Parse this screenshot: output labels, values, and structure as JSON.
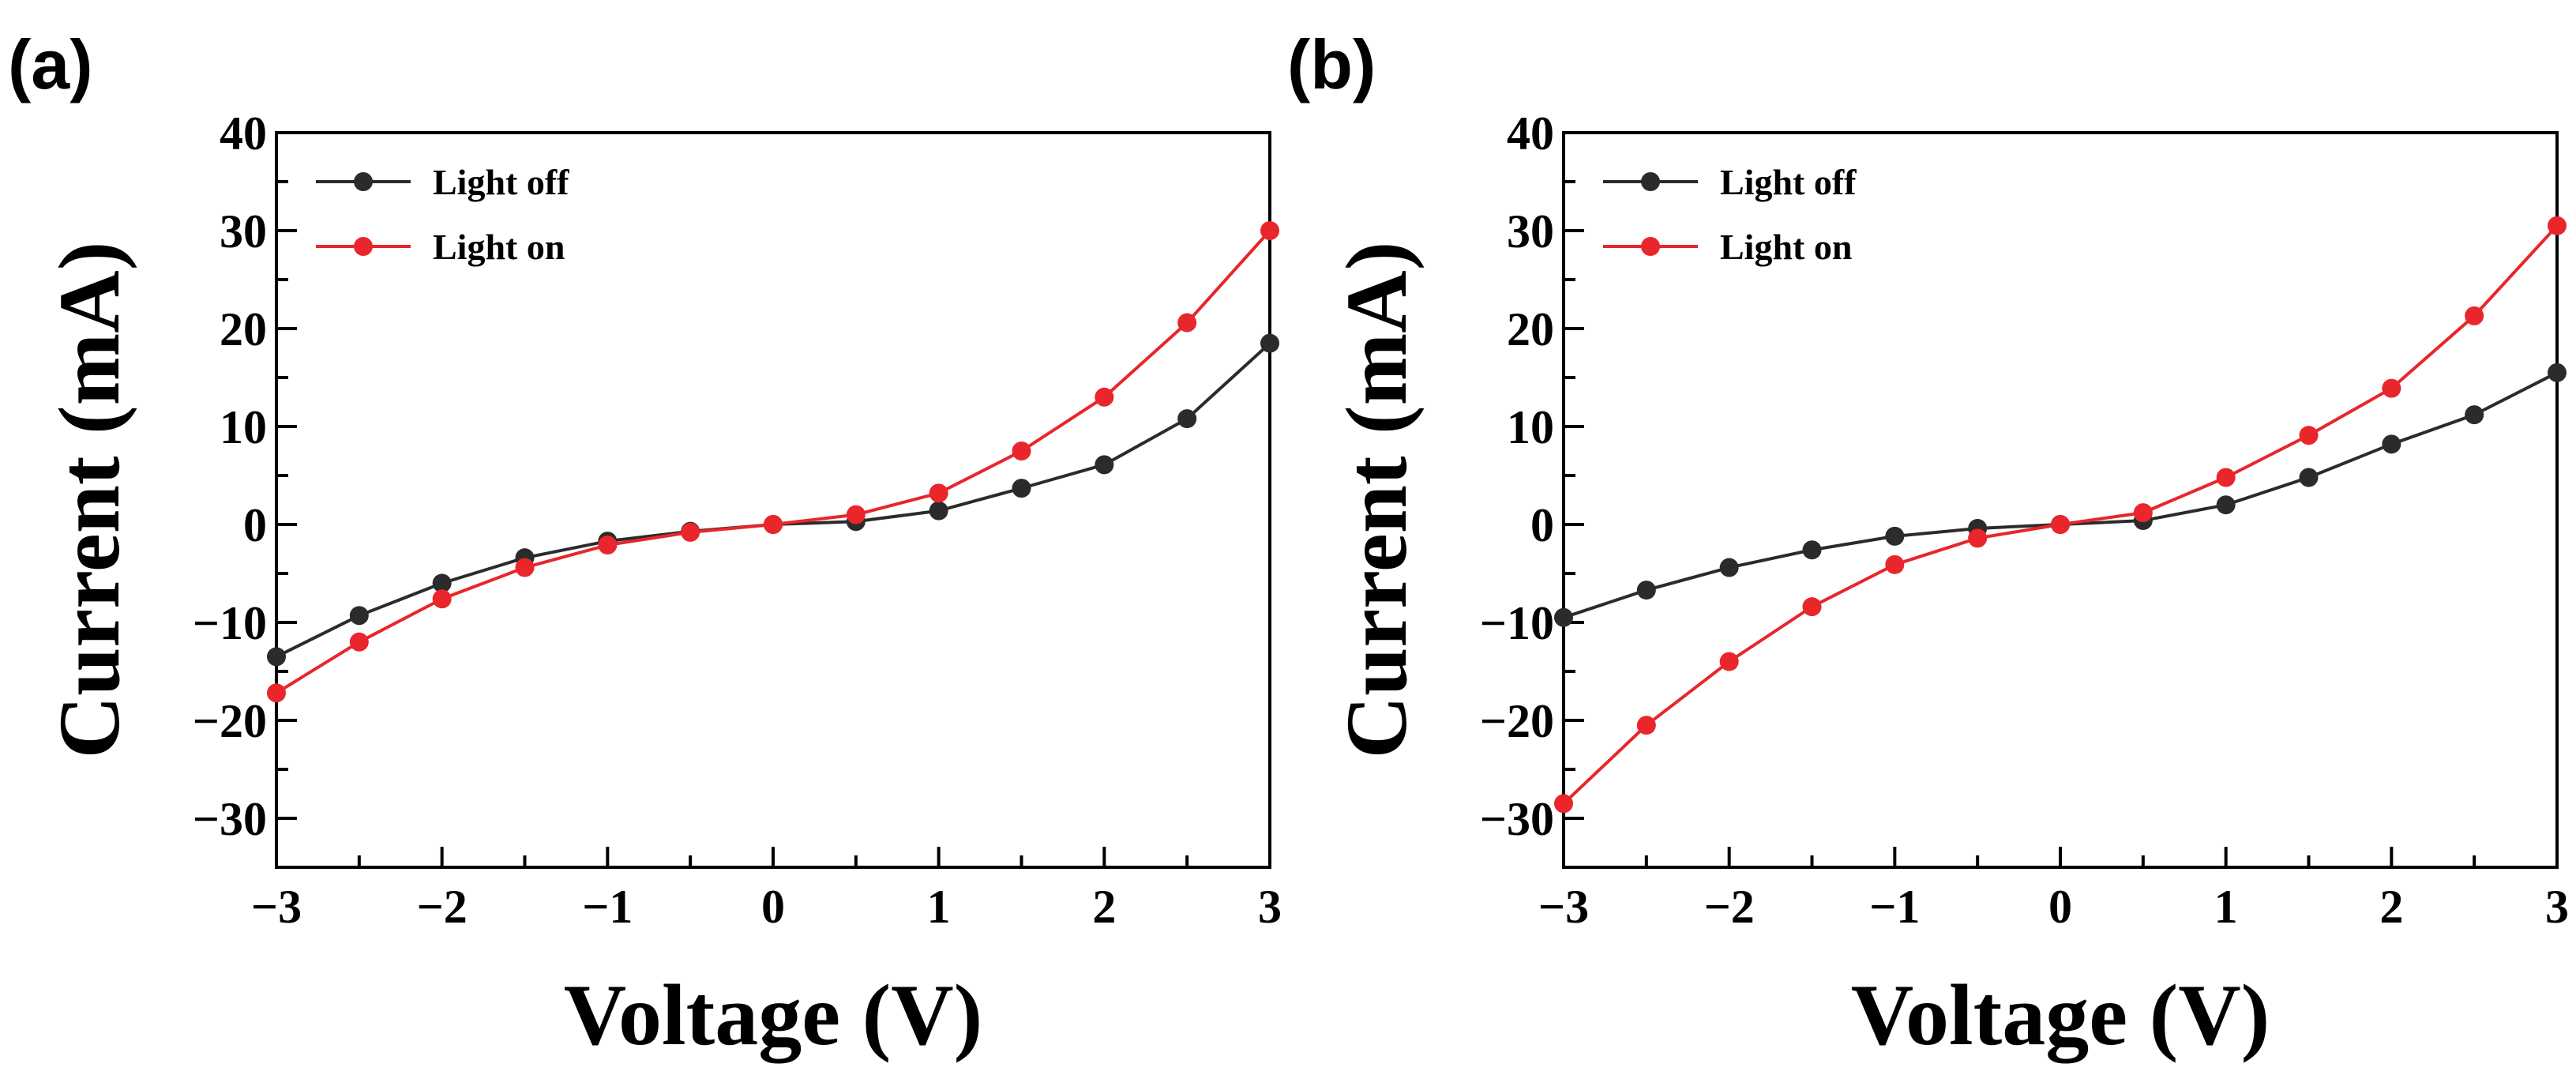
{
  "chart_data": [
    {
      "type": "line",
      "panel_label": "(a)",
      "xlabel": "Voltage (V)",
      "ylabel": "Current (mA)",
      "xlim": [
        -3,
        3
      ],
      "ylim": [
        -35,
        40
      ],
      "x_ticks": [
        -3,
        -2,
        -1,
        0,
        1,
        2,
        3
      ],
      "x_tick_labels": [
        "−3",
        "−2",
        "−1",
        "0",
        "1",
        "2",
        "3"
      ],
      "y_ticks": [
        -30,
        -20,
        -10,
        0,
        10,
        20,
        30,
        40
      ],
      "y_tick_labels": [
        "−30",
        "−20",
        "−10",
        "0",
        "10",
        "20",
        "30",
        "40"
      ],
      "legend_position": "top-left",
      "x": [
        -3,
        -2.5,
        -2,
        -1.5,
        -1,
        -0.5,
        0,
        0.5,
        1,
        1.5,
        2,
        2.5,
        3
      ],
      "series": [
        {
          "name": "Light off",
          "color": "#2b2b2b",
          "marker": "circle",
          "values": [
            -13.5,
            -9.3,
            -6.0,
            -3.4,
            -1.7,
            -0.7,
            0,
            0.3,
            1.4,
            3.7,
            6.1,
            10.8,
            18.5
          ]
        },
        {
          "name": "Light on",
          "color": "#e8262b",
          "marker": "circle",
          "values": [
            -17.2,
            -12.0,
            -7.6,
            -4.4,
            -2.1,
            -0.8,
            0,
            1.0,
            3.2,
            7.5,
            13.0,
            20.6,
            30.0
          ]
        }
      ]
    },
    {
      "type": "line",
      "panel_label": "(b)",
      "xlabel": "Voltage (V)",
      "ylabel": "Current (mA)",
      "xlim": [
        -3,
        3
      ],
      "ylim": [
        -35,
        40
      ],
      "x_ticks": [
        -3,
        -2,
        -1,
        0,
        1,
        2,
        3
      ],
      "x_tick_labels": [
        "−3",
        "−2",
        "−1",
        "0",
        "1",
        "2",
        "3"
      ],
      "y_ticks": [
        -30,
        -20,
        -10,
        0,
        10,
        20,
        30,
        40
      ],
      "y_tick_labels": [
        "−30",
        "−20",
        "−10",
        "0",
        "10",
        "20",
        "30",
        "40"
      ],
      "legend_position": "top-left",
      "x": [
        -3,
        -2.5,
        -2,
        -1.5,
        -1,
        -0.5,
        0,
        0.5,
        1,
        1.5,
        2,
        2.5,
        3
      ],
      "series": [
        {
          "name": "Light off",
          "color": "#2b2b2b",
          "marker": "circle",
          "values": [
            -9.5,
            -6.7,
            -4.4,
            -2.6,
            -1.2,
            -0.4,
            0,
            0.4,
            2.0,
            4.8,
            8.2,
            11.2,
            15.5
          ]
        },
        {
          "name": "Light on",
          "color": "#e8262b",
          "marker": "circle",
          "values": [
            -28.5,
            -20.5,
            -14.0,
            -8.4,
            -4.1,
            -1.4,
            0,
            1.2,
            4.8,
            9.1,
            13.9,
            21.3,
            30.5
          ]
        }
      ]
    }
  ]
}
